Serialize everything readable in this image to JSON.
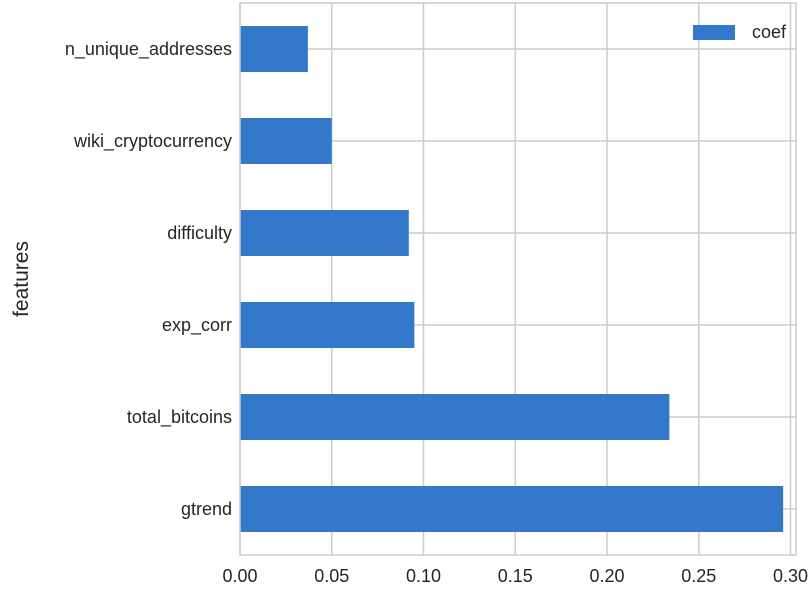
{
  "chart_data": {
    "type": "bar",
    "orientation": "horizontal",
    "categories": [
      "gtrend",
      "total_bitcoins",
      "exp_corr",
      "difficulty",
      "wiki_cryptocurrency",
      "n_unique_addresses"
    ],
    "series": [
      {
        "name": "coef",
        "values": [
          0.296,
          0.234,
          0.095,
          0.092,
          0.05,
          0.037
        ],
        "color": "#3478cc"
      }
    ],
    "title": "",
    "xlabel": "",
    "ylabel": "features",
    "xlim": [
      0,
      0.303
    ],
    "xticks": [
      0.0,
      0.05,
      0.1,
      0.15,
      0.2,
      0.25,
      0.3
    ],
    "xtick_labels": [
      "0.00",
      "0.05",
      "0.10",
      "0.15",
      "0.20",
      "0.25",
      "0.30"
    ],
    "grid": true,
    "legend_position": "top-right",
    "colors": {
      "grid": "#cccccc",
      "frame": "#cccccc",
      "text": "#262626",
      "background": "#ffffff"
    }
  }
}
